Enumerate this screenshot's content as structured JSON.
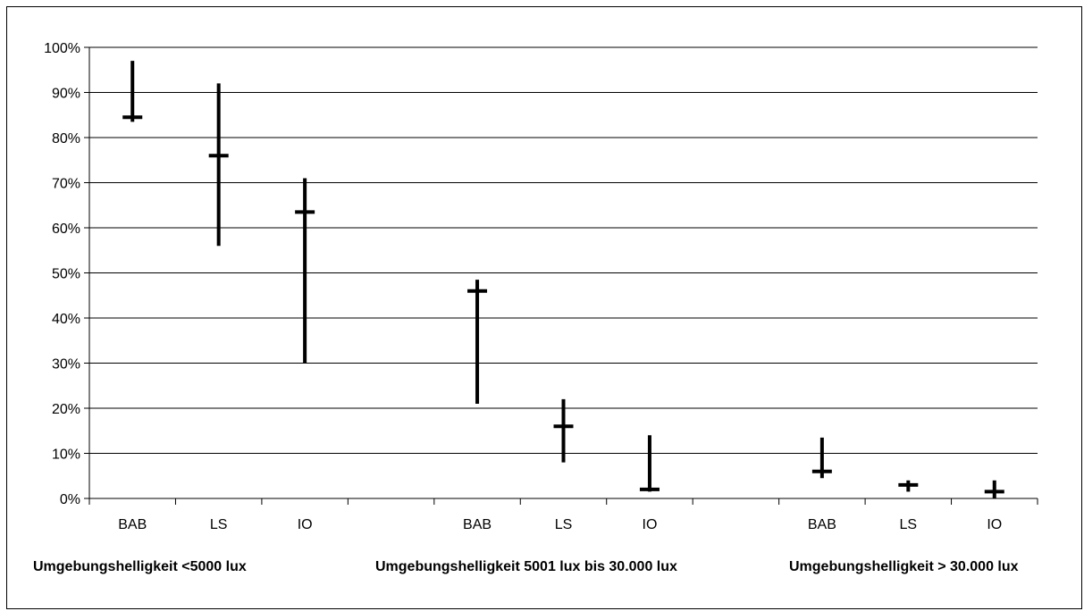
{
  "chart_data": {
    "type": "hi-lo-close",
    "title": "",
    "xlabel": "",
    "ylabel": "",
    "ylim": [
      0,
      100
    ],
    "y_ticks": [
      "0%",
      "10%",
      "20%",
      "30%",
      "40%",
      "50%",
      "60%",
      "70%",
      "80%",
      "90%",
      "100%"
    ],
    "grid": true,
    "legend": "none",
    "groups": [
      {
        "label": "Umgebungshelligkeit <5000 lux",
        "categories": [
          "BAB",
          "LS",
          "IO"
        ],
        "high": [
          97,
          92,
          71
        ],
        "low": [
          83.5,
          56,
          30
        ],
        "close": [
          84.5,
          76,
          63.5
        ]
      },
      {
        "label": "Umgebungshelligkeit 5001 lux bis 30.000 lux",
        "categories": [
          "BAB",
          "LS",
          "IO"
        ],
        "high": [
          48.5,
          22,
          14
        ],
        "low": [
          21,
          8,
          1.5
        ],
        "close": [
          46,
          16,
          2
        ]
      },
      {
        "label": "Umgebungshelligkeit > 30.000 lux",
        "categories": [
          "BAB",
          "LS",
          "IO"
        ],
        "high": [
          13.5,
          4,
          4
        ],
        "low": [
          4.5,
          1.5,
          0
        ],
        "close": [
          6,
          3,
          1.5
        ]
      }
    ],
    "colors": {
      "marks": "#000000",
      "grid": "#000000",
      "background": "#ffffff"
    }
  }
}
